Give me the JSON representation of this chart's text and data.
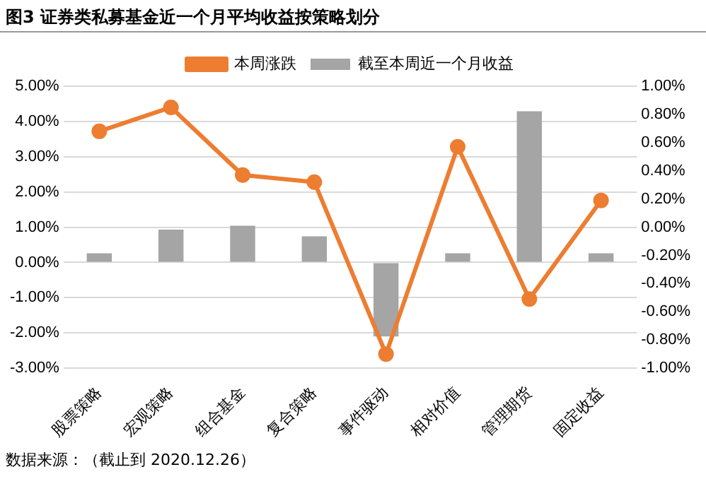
{
  "chart_data": {
    "type": "bar",
    "title": "图3 证券类私募基金近一个月平均收益按策略划分",
    "categories": [
      "股票策略",
      "宏观策略",
      "组合基金",
      "复合策略",
      "事件驱动",
      "相对价值",
      "管理期货",
      "固定收益"
    ],
    "series": [
      {
        "name": "截至本周近一个月收益",
        "color": "#a5a5a5",
        "values": [
          0.26,
          0.93,
          1.04,
          0.74,
          -2.1,
          0.26,
          4.29,
          0.26
        ]
      },
      {
        "name": "本周涨跌",
        "type": "line",
        "axis": "y2",
        "color": "#ed7d31",
        "values": [
          0.68,
          0.85,
          0.37,
          0.32,
          -0.9,
          0.57,
          -0.51,
          0.19
        ]
      }
    ],
    "ylim": [
      -3,
      5
    ],
    "yticks": [
      {
        "value": -3,
        "label": "-3.00%"
      },
      {
        "value": -2,
        "label": "-2.00%"
      },
      {
        "value": -1,
        "label": "-1.00%"
      },
      {
        "value": 0,
        "label": "0.00%"
      },
      {
        "value": 1,
        "label": "1.00%"
      },
      {
        "value": 2,
        "label": "2.00%"
      },
      {
        "value": 3,
        "label": "3.00%"
      },
      {
        "value": 4,
        "label": "4.00%"
      },
      {
        "value": 5,
        "label": "5.00%"
      }
    ],
    "y2lim": [
      -1,
      1
    ],
    "y2ticks": [
      {
        "value": -1,
        "label": "-1.00%"
      },
      {
        "value": -0.8,
        "label": "-0.80%"
      },
      {
        "value": -0.6,
        "label": "-0.60%"
      },
      {
        "value": -0.4,
        "label": "-0.40%"
      },
      {
        "value": -0.2,
        "label": "-0.20%"
      },
      {
        "value": 0,
        "label": "0.00%"
      },
      {
        "value": 0.2,
        "label": "0.20%"
      },
      {
        "value": 0.4,
        "label": "0.40%"
      },
      {
        "value": 0.6,
        "label": "0.60%"
      },
      {
        "value": 0.8,
        "label": "0.80%"
      },
      {
        "value": 1,
        "label": "1.00%"
      }
    ],
    "grid": "y",
    "legend": "top",
    "marker": "circle",
    "line_style": "solid",
    "annotations": [
      "数据来源：（截止到 2020.12.26）"
    ]
  }
}
